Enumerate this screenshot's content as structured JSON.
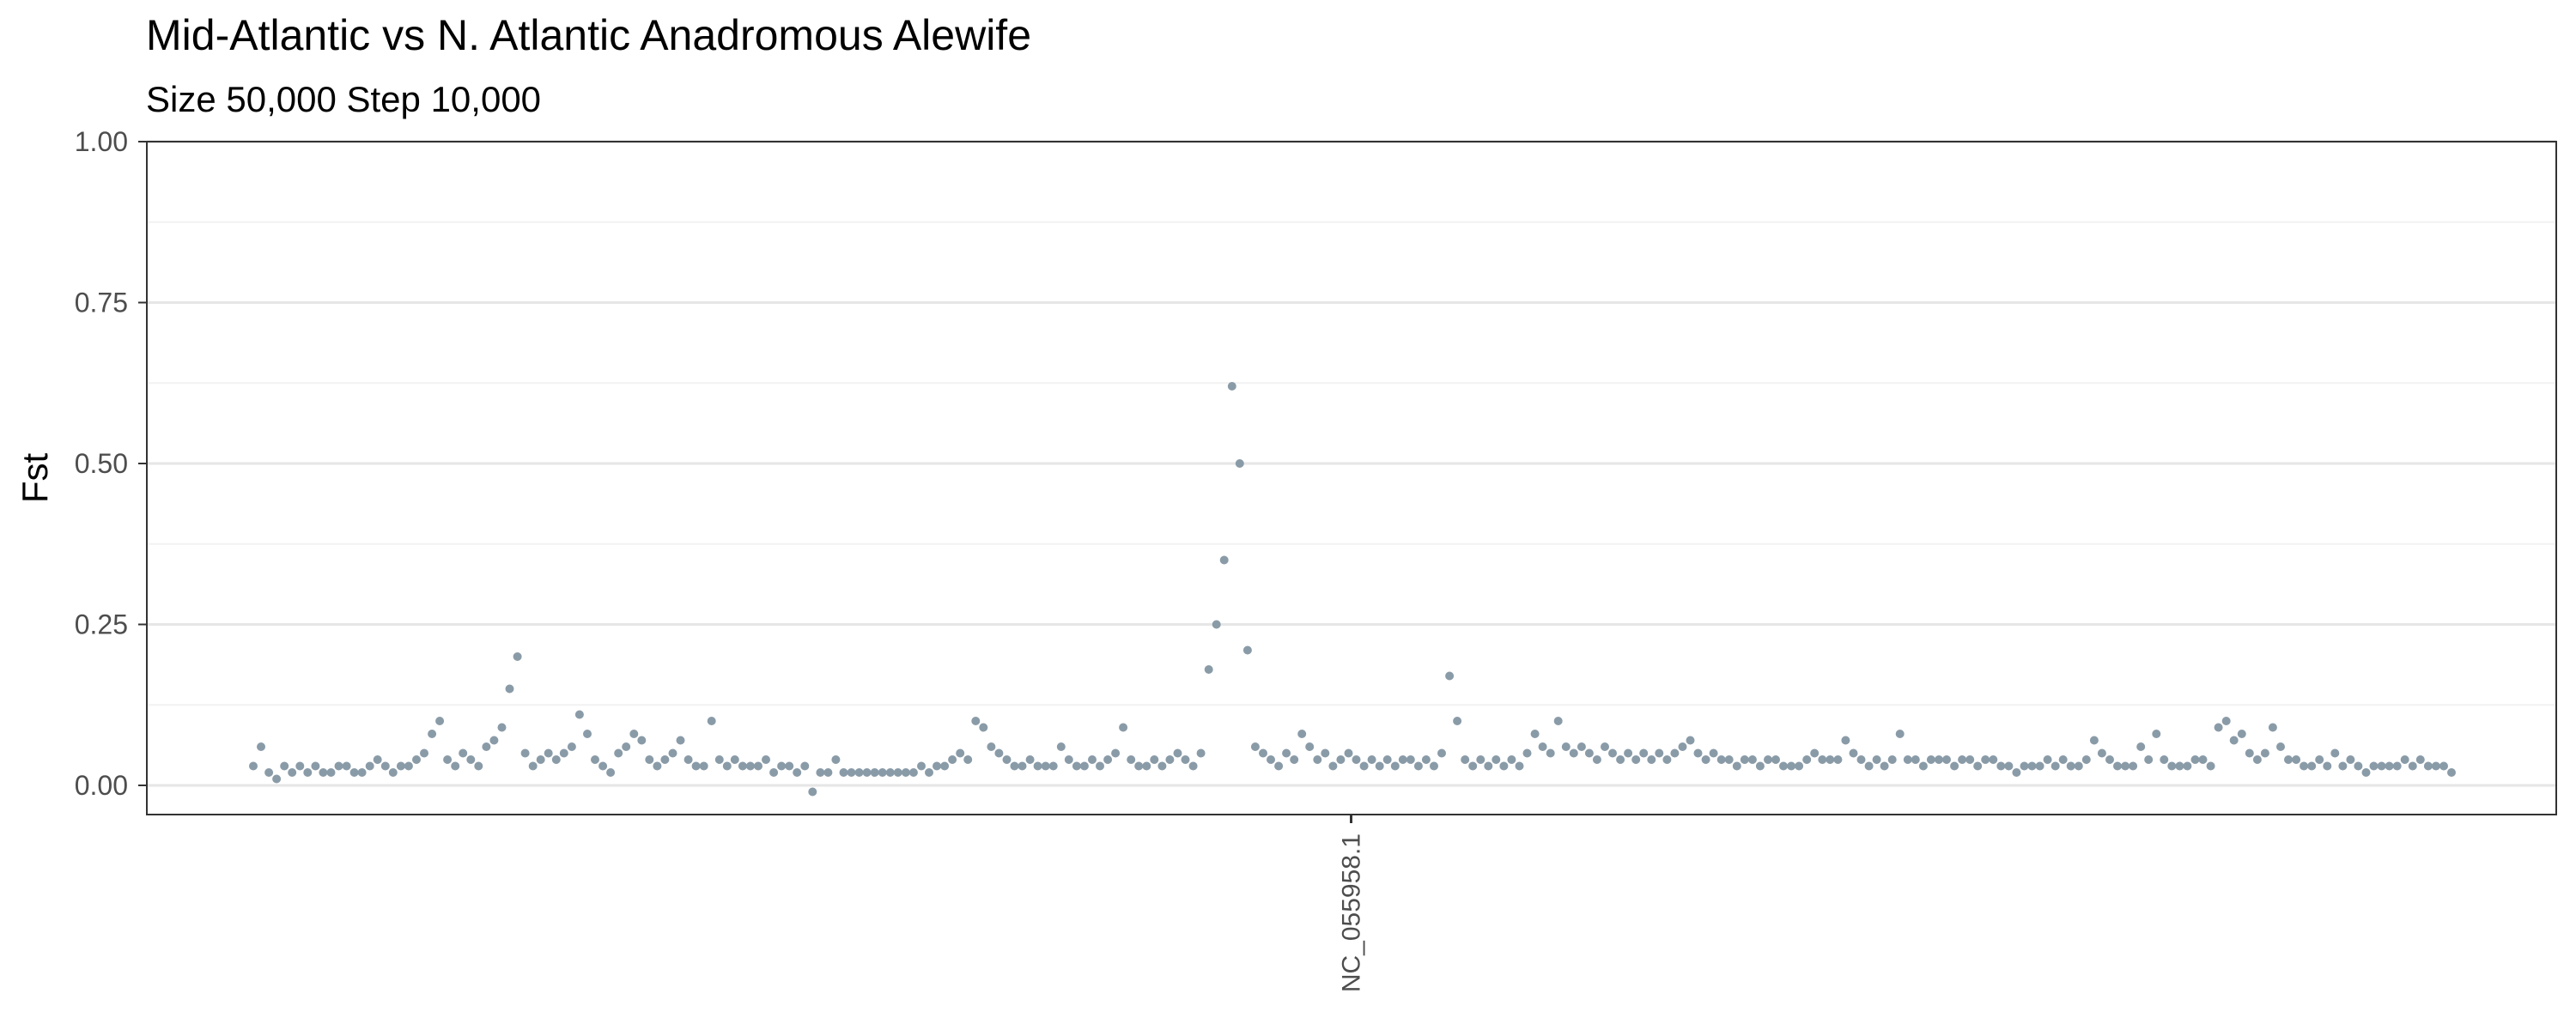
{
  "chart_data": {
    "type": "scatter",
    "title": "Mid-Atlantic vs N. Atlantic Anadromous Alewife",
    "subtitle": "Size 50,000 Step 10,000",
    "ylabel": "Fst",
    "xlabel": "",
    "ylim": [
      -0.05,
      1.0
    ],
    "y_ticks": [
      0.0,
      0.25,
      0.5,
      0.75,
      1.0
    ],
    "y_tick_labels": [
      "0.00",
      "0.25",
      "0.50",
      "0.75",
      "1.00"
    ],
    "x_categories": [
      "NC_055958.1"
    ],
    "grid": "horizontal major and minor",
    "point_color": "#8a9ba8",
    "series": [
      {
        "values": [
          0.03,
          0.06,
          0.02,
          0.01,
          0.03,
          0.02,
          0.03,
          0.02,
          0.03,
          0.02,
          0.02,
          0.03,
          0.03,
          0.02,
          0.02,
          0.03,
          0.04,
          0.03,
          0.02,
          0.03,
          0.03,
          0.04,
          0.05,
          0.08,
          0.1,
          0.04,
          0.03,
          0.05,
          0.04,
          0.03,
          0.06,
          0.07,
          0.09,
          0.15,
          0.2,
          0.05,
          0.03,
          0.04,
          0.05,
          0.04,
          0.05,
          0.06,
          0.11,
          0.08,
          0.04,
          0.03,
          0.02,
          0.05,
          0.06,
          0.08,
          0.07,
          0.04,
          0.03,
          0.04,
          0.05,
          0.07,
          0.04,
          0.03,
          0.03,
          0.1,
          0.04,
          0.03,
          0.04,
          0.03,
          0.03,
          0.03,
          0.04,
          0.02,
          0.03,
          0.03,
          0.02,
          0.03,
          -0.01,
          0.02,
          0.02,
          0.04,
          0.02,
          0.02,
          0.02,
          0.02,
          0.02,
          0.02,
          0.02,
          0.02,
          0.02,
          0.02,
          0.03,
          0.02,
          0.03,
          0.03,
          0.04,
          0.05,
          0.04,
          0.1,
          0.09,
          0.06,
          0.05,
          0.04,
          0.03,
          0.03,
          0.04,
          0.03,
          0.03,
          0.03,
          0.06,
          0.04,
          0.03,
          0.03,
          0.04,
          0.03,
          0.04,
          0.05,
          0.09,
          0.04,
          0.03,
          0.03,
          0.04,
          0.03,
          0.04,
          0.05,
          0.04,
          0.03,
          0.05,
          0.18,
          0.25,
          0.35,
          0.62,
          0.5,
          0.21,
          0.06,
          0.05,
          0.04,
          0.03,
          0.05,
          0.04,
          0.08,
          0.06,
          0.04,
          0.05,
          0.03,
          0.04,
          0.05,
          0.04,
          0.03,
          0.04,
          0.03,
          0.04,
          0.03,
          0.04,
          0.04,
          0.03,
          0.04,
          0.03,
          0.05,
          0.17,
          0.1,
          0.04,
          0.03,
          0.04,
          0.03,
          0.04,
          0.03,
          0.04,
          0.03,
          0.05,
          0.08,
          0.06,
          0.05,
          0.1,
          0.06,
          0.05,
          0.06,
          0.05,
          0.04,
          0.06,
          0.05,
          0.04,
          0.05,
          0.04,
          0.05,
          0.04,
          0.05,
          0.04,
          0.05,
          0.06,
          0.07,
          0.05,
          0.04,
          0.05,
          0.04,
          0.04,
          0.03,
          0.04,
          0.04,
          0.03,
          0.04,
          0.04,
          0.03,
          0.03,
          0.03,
          0.04,
          0.05,
          0.04,
          0.04,
          0.04,
          0.07,
          0.05,
          0.04,
          0.03,
          0.04,
          0.03,
          0.04,
          0.08,
          0.04,
          0.04,
          0.03,
          0.04,
          0.04,
          0.04,
          0.03,
          0.04,
          0.04,
          0.03,
          0.04,
          0.04,
          0.03,
          0.03,
          0.02,
          0.03,
          0.03,
          0.03,
          0.04,
          0.03,
          0.04,
          0.03,
          0.03,
          0.04,
          0.07,
          0.05,
          0.04,
          0.03,
          0.03,
          0.03,
          0.06,
          0.04,
          0.08,
          0.04,
          0.03,
          0.03,
          0.03,
          0.04,
          0.04,
          0.03,
          0.09,
          0.1,
          0.07,
          0.08,
          0.05,
          0.04,
          0.05,
          0.09,
          0.06,
          0.04,
          0.04,
          0.03,
          0.03,
          0.04,
          0.03,
          0.05,
          0.03,
          0.04,
          0.03,
          0.02,
          0.03,
          0.03,
          0.03,
          0.03,
          0.04,
          0.03,
          0.04,
          0.03,
          0.03,
          0.03,
          0.02
        ]
      }
    ]
  }
}
